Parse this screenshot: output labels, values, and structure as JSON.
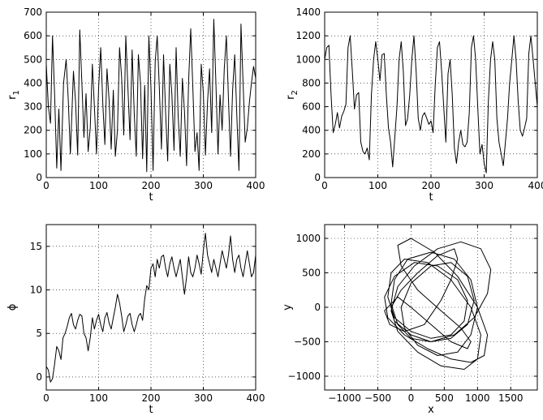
{
  "chart_data": [
    {
      "type": "line",
      "xlabel": "t",
      "ylabel": "r",
      "ylabel_sub": "1",
      "xlim": [
        0,
        400
      ],
      "ylim": [
        0,
        700
      ],
      "xticks": [
        0,
        100,
        200,
        300,
        400
      ],
      "yticks": [
        0,
        100,
        200,
        300,
        400,
        500,
        600,
        700
      ],
      "grid": true,
      "series": [
        {
          "x": [
            0,
            4,
            8,
            12,
            16,
            20,
            24,
            28,
            33,
            38,
            42,
            46,
            52,
            56,
            60,
            64,
            68,
            72,
            76,
            80,
            84,
            88,
            92,
            96,
            100,
            104,
            108,
            112,
            116,
            120,
            124,
            128,
            132,
            136,
            140,
            144,
            148,
            152,
            156,
            160,
            164,
            168,
            172,
            176,
            180,
            184,
            188,
            192,
            196,
            200,
            204,
            208,
            212,
            216,
            220,
            224,
            228,
            232,
            236,
            240,
            244,
            248,
            252,
            256,
            260,
            264,
            268,
            272,
            276,
            280,
            284,
            288,
            292,
            296,
            300,
            304,
            308,
            312,
            316,
            320,
            324,
            328,
            332,
            336,
            340,
            344,
            348,
            352,
            356,
            360,
            364,
            368,
            372,
            376,
            380,
            384,
            388,
            392,
            396,
            400
          ],
          "y": [
            480,
            300,
            230,
            600,
            350,
            40,
            290,
            30,
            400,
            500,
            330,
            100,
            450,
            320,
            95,
            625,
            400,
            170,
            355,
            110,
            210,
            480,
            300,
            100,
            380,
            550,
            310,
            140,
            460,
            330,
            120,
            370,
            90,
            200,
            550,
            420,
            180,
            600,
            380,
            160,
            540,
            270,
            90,
            520,
            400,
            80,
            390,
            25,
            600,
            380,
            30,
            490,
            600,
            380,
            120,
            520,
            270,
            70,
            480,
            350,
            115,
            550,
            260,
            90,
            420,
            280,
            50,
            410,
            630,
            380,
            110,
            190,
            30,
            480,
            360,
            95,
            320,
            460,
            190,
            670,
            400,
            100,
            350,
            200,
            460,
            600,
            330,
            90,
            370,
            520,
            260,
            30,
            650,
            400,
            150,
            210,
            320,
            400,
            470,
            420
          ]
        }
      ]
    },
    {
      "type": "line",
      "xlabel": "t",
      "ylabel": "r",
      "ylabel_sub": "2",
      "xlim": [
        0,
        400
      ],
      "ylim": [
        0,
        1400
      ],
      "xticks": [
        0,
        100,
        200,
        300,
        400
      ],
      "yticks": [
        0,
        200,
        400,
        600,
        800,
        1000,
        1200,
        1400
      ],
      "grid": true,
      "series": [
        {
          "x": [
            0,
            4,
            8,
            12,
            16,
            20,
            24,
            28,
            32,
            36,
            40,
            44,
            48,
            52,
            56,
            60,
            64,
            68,
            72,
            76,
            80,
            84,
            88,
            92,
            96,
            100,
            104,
            108,
            112,
            116,
            120,
            124,
            128,
            132,
            136,
            140,
            144,
            148,
            152,
            156,
            160,
            164,
            168,
            172,
            176,
            180,
            184,
            188,
            192,
            196,
            200,
            204,
            208,
            212,
            216,
            220,
            224,
            228,
            232,
            236,
            240,
            244,
            248,
            252,
            256,
            260,
            264,
            268,
            272,
            276,
            280,
            284,
            288,
            292,
            296,
            300,
            304,
            308,
            312,
            316,
            320,
            324,
            328,
            332,
            336,
            340,
            344,
            348,
            352,
            356,
            360,
            364,
            368,
            372,
            376,
            380,
            384,
            388,
            392,
            396,
            400
          ],
          "y": [
            1000,
            1100,
            1120,
            700,
            380,
            450,
            550,
            420,
            520,
            560,
            620,
            1100,
            1200,
            900,
            580,
            700,
            720,
            300,
            220,
            200,
            250,
            150,
            700,
            1000,
            1150,
            1000,
            820,
            1040,
            1050,
            700,
            420,
            300,
            90,
            350,
            600,
            1000,
            1150,
            900,
            440,
            500,
            700,
            1000,
            1200,
            900,
            500,
            400,
            520,
            550,
            500,
            450,
            480,
            380,
            780,
            1100,
            1150,
            900,
            600,
            300,
            880,
            1000,
            700,
            250,
            120,
            300,
            400,
            280,
            260,
            300,
            550,
            1100,
            1200,
            1000,
            600,
            200,
            280,
            120,
            40,
            650,
            1000,
            1150,
            1000,
            500,
            300,
            200,
            100,
            300,
            500,
            800,
            1000,
            1200,
            1000,
            650,
            400,
            350,
            420,
            500,
            1050,
            1200,
            1000,
            800,
            600
          ]
        }
      ]
    },
    {
      "type": "line",
      "xlabel": "t",
      "ylabel": "ϕ",
      "xlim": [
        0,
        400
      ],
      "ylim": [
        -1.5,
        17.5
      ],
      "xticks": [
        0,
        100,
        200,
        300,
        400
      ],
      "yticks": [
        0,
        5,
        10,
        15
      ],
      "grid": true,
      "series": [
        {
          "x": [
            0,
            4,
            8,
            12,
            16,
            20,
            24,
            28,
            32,
            36,
            40,
            44,
            48,
            52,
            56,
            60,
            64,
            68,
            72,
            76,
            80,
            84,
            88,
            92,
            96,
            100,
            104,
            108,
            112,
            116,
            120,
            124,
            128,
            132,
            136,
            140,
            144,
            148,
            152,
            156,
            160,
            164,
            168,
            172,
            176,
            180,
            184,
            188,
            192,
            196,
            200,
            204,
            208,
            212,
            216,
            220,
            224,
            228,
            232,
            236,
            240,
            244,
            248,
            252,
            256,
            260,
            264,
            268,
            272,
            276,
            280,
            284,
            288,
            292,
            296,
            300,
            304,
            308,
            312,
            316,
            320,
            324,
            328,
            332,
            336,
            340,
            344,
            348,
            352,
            356,
            360,
            364,
            368,
            372,
            376,
            380,
            384,
            388,
            392,
            396,
            400
          ],
          "y": [
            1.2,
            0.8,
            -0.6,
            -0.2,
            1.5,
            3.5,
            3.0,
            2.0,
            4.5,
            5.0,
            5.8,
            6.8,
            7.3,
            6.0,
            5.5,
            6.5,
            7.2,
            7.0,
            5.0,
            4.5,
            3.0,
            4.5,
            6.8,
            5.5,
            6.5,
            7.2,
            6.0,
            5.2,
            6.8,
            7.4,
            6.2,
            5.5,
            6.8,
            8.0,
            9.5,
            8.5,
            7.0,
            5.2,
            6.0,
            7.0,
            7.3,
            6.0,
            5.2,
            6.0,
            7.0,
            7.3,
            6.5,
            9.0,
            10.5,
            10.0,
            12.5,
            13.0,
            11.5,
            13.5,
            12.5,
            13.8,
            14.0,
            12.5,
            11.5,
            13.0,
            13.8,
            12.5,
            11.5,
            12.5,
            13.5,
            11.5,
            9.5,
            11.5,
            13.8,
            12.0,
            11.5,
            12.5,
            14.0,
            13.0,
            11.8,
            14.5,
            16.5,
            14.0,
            13.0,
            12.0,
            13.5,
            12.5,
            11.5,
            13.0,
            14.5,
            13.5,
            12.5,
            14.0,
            16.2,
            13.5,
            12.0,
            13.5,
            14.0,
            12.5,
            11.5,
            13.0,
            14.5,
            13.0,
            11.5,
            12.0,
            14.0
          ]
        }
      ]
    },
    {
      "type": "line",
      "xlabel": "x",
      "ylabel": "y",
      "xlim": [
        -1300,
        1900
      ],
      "ylim": [
        -1200,
        1200
      ],
      "xticks": [
        -1000,
        -500,
        0,
        500,
        1000,
        1500
      ],
      "yticks": [
        -1000,
        -500,
        0,
        500,
        1000
      ],
      "grid": true,
      "series": [
        {
          "x": [
            0,
            -200,
            -400,
            -320,
            -100,
            200,
            450,
            600,
            700,
            650,
            400,
            100,
            -150,
            -300,
            -250,
            0,
            300,
            600,
            850,
            950,
            850,
            600,
            300,
            0,
            -150,
            -100,
            100,
            400,
            700,
            900,
            1000,
            900,
            650,
            300,
            -50,
            -250,
            -300,
            -200,
            0,
            300,
            650,
            950,
            1150,
            1200,
            1050,
            750,
            400,
            50,
            -200,
            -300,
            -200,
            100,
            450,
            800,
            1000,
            1050,
            900,
            600,
            250,
            -100,
            -300,
            -350,
            -250,
            0,
            300,
            600,
            800,
            850,
            700,
            400,
            50,
            -250,
            -400,
            -350,
            -100,
            250,
            600,
            900,
            1100,
            1150,
            1000,
            700,
            350,
            0,
            -200,
            -150,
            100,
            450,
            750,
            900,
            850,
            600,
            300,
            0
          ],
          "y": [
            0,
            150,
            -50,
            -250,
            -350,
            -250,
            100,
            400,
            700,
            850,
            750,
            500,
            250,
            0,
            -200,
            -400,
            -500,
            -450,
            -250,
            100,
            450,
            650,
            600,
            350,
            0,
            -300,
            -550,
            -700,
            -650,
            -400,
            0,
            400,
            700,
            800,
            700,
            400,
            50,
            -250,
            -450,
            -500,
            -400,
            -150,
            200,
            550,
            850,
            950,
            850,
            600,
            300,
            -50,
            -350,
            -650,
            -850,
            -900,
            -750,
            -400,
            0,
            400,
            650,
            700,
            500,
            150,
            -150,
            -350,
            -450,
            -400,
            -200,
            100,
            400,
            600,
            650,
            450,
            150,
            -150,
            -400,
            -600,
            -750,
            -800,
            -700,
            -400,
            0,
            450,
            800,
            1000,
            900,
            600,
            250,
            -50,
            -300,
            -500,
            -600,
            -500,
            -250,
            0
          ]
        }
      ]
    }
  ]
}
